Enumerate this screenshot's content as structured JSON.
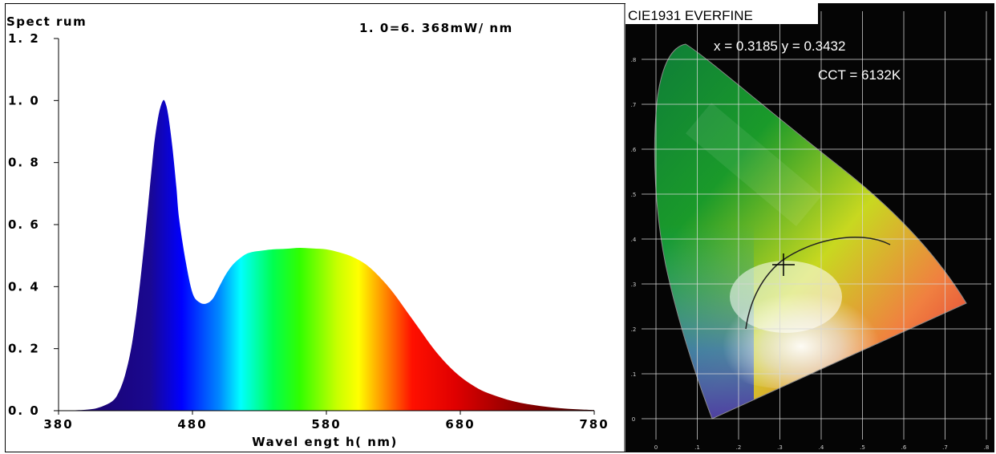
{
  "chart_data": [
    {
      "type": "area",
      "title": "Spect rum",
      "annotation": "1. 0=6. 368mW/ nm",
      "xlabel": "Wavel engt h( nm)",
      "ylabel": "",
      "xlim": [
        380,
        780
      ],
      "ylim": [
        0,
        1.2
      ],
      "x_ticks": [
        380,
        480,
        580,
        680,
        780
      ],
      "x_tick_labels": [
        "380",
        "480",
        "580",
        "680",
        "780"
      ],
      "y_ticks": [
        0.0,
        0.2,
        0.4,
        0.6,
        0.8,
        1.0,
        1.2
      ],
      "y_tick_labels": [
        "0. 0",
        "0. 2",
        "0. 4",
        "0. 6",
        "0. 8",
        "1. 0",
        "1. 2"
      ],
      "grid": false,
      "fill": "spectral-gradient",
      "x": [
        380,
        400,
        410,
        420,
        425,
        430,
        435,
        440,
        445,
        450,
        452,
        455,
        458,
        460,
        462,
        465,
        468,
        470,
        475,
        480,
        485,
        490,
        495,
        500,
        505,
        510,
        515,
        520,
        525,
        530,
        540,
        550,
        560,
        570,
        580,
        590,
        600,
        610,
        620,
        630,
        640,
        650,
        660,
        670,
        680,
        690,
        700,
        720,
        740,
        760,
        780
      ],
      "values": [
        0,
        0.003,
        0.01,
        0.03,
        0.06,
        0.12,
        0.22,
        0.38,
        0.58,
        0.8,
        0.88,
        0.96,
        1.0,
        0.99,
        0.95,
        0.85,
        0.72,
        0.62,
        0.48,
        0.38,
        0.35,
        0.345,
        0.36,
        0.4,
        0.44,
        0.47,
        0.49,
        0.505,
        0.512,
        0.515,
        0.52,
        0.522,
        0.525,
        0.523,
        0.52,
        0.51,
        0.495,
        0.47,
        0.43,
        0.38,
        0.32,
        0.26,
        0.2,
        0.15,
        0.11,
        0.08,
        0.058,
        0.03,
        0.015,
        0.006,
        0.002
      ]
    },
    {
      "type": "scatter",
      "title": "CIE1931 EVERFINE",
      "annotations": [
        "x = 0.3185 y = 0.3432",
        "CCT = 6132K"
      ],
      "xlim": [
        0,
        0.8
      ],
      "ylim": [
        0,
        0.9
      ],
      "x_tick_labels": [
        "0",
        ".1",
        ".2",
        ".3",
        ".4",
        ".5",
        ".6",
        ".7",
        ".8"
      ],
      "y_tick_labels": [
        "0",
        ".1",
        ".2",
        ".3",
        ".4",
        ".5",
        ".6",
        ".7",
        ".8"
      ],
      "grid": true,
      "point": {
        "x": 0.3185,
        "y": 0.3432,
        "marker": "crosshair"
      },
      "background": "#000000"
    }
  ],
  "colors": {
    "cie_background": "#050505",
    "grid": "#d8d8d8",
    "marker": "#000000"
  }
}
